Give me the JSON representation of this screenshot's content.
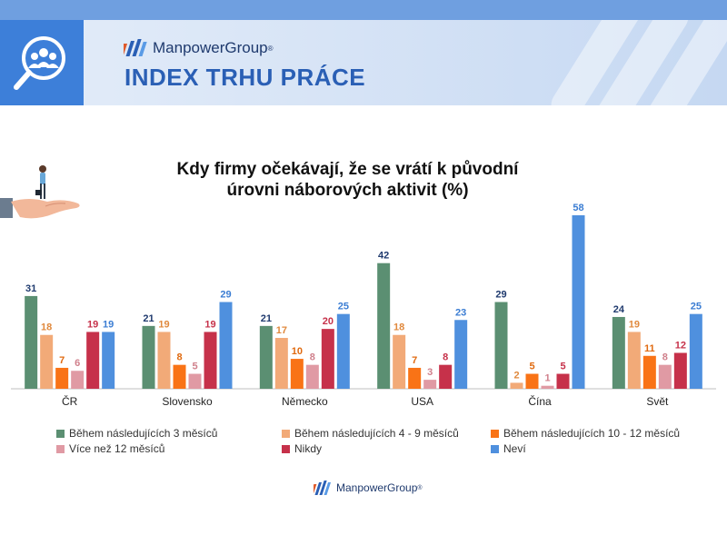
{
  "header": {
    "brand": "ManpowerGroup",
    "brand_mark": "®",
    "title": "INDEX TRHU PRÁCE"
  },
  "footer": {
    "brand": "ManpowerGroup",
    "brand_mark": "®"
  },
  "icons": {
    "header_icon": "people-search-icon",
    "illustration": "hand-holding-businesswoman-icon",
    "logo": "manpower-stripes-logo"
  },
  "colors": {
    "header_icon_bg": "#3d7fd9",
    "banner_top": "#6f9fe0",
    "title_blue": "#2a5fb5",
    "label_default": "#1f3a6e"
  },
  "chart_data": {
    "type": "bar",
    "title": "Kdy firmy očekávají, že se vrátí k původní\núrovni náborových aktivit (%)",
    "xlabel": "",
    "ylabel": "",
    "ylim": [
      0,
      60
    ],
    "grid": false,
    "legend_position": "bottom",
    "categories": [
      "ČR",
      "Slovensko",
      "Německo",
      "USA",
      "Čína",
      "Svět"
    ],
    "series": [
      {
        "name": "Během následujících 3 měsíců",
        "color": "#5b8f72",
        "label_color": "#1f3a6e",
        "values": [
          31,
          21,
          21,
          42,
          29,
          24
        ]
      },
      {
        "name": "Během následujících 4 - 9 měsíců",
        "color": "#f2aa78",
        "label_color": "#e0893d",
        "values": [
          18,
          19,
          17,
          18,
          2,
          19
        ]
      },
      {
        "name": "Během následujících 10 - 12 měsíců",
        "color": "#f97316",
        "label_color": "#e06a10",
        "values": [
          7,
          8,
          10,
          7,
          5,
          11
        ]
      },
      {
        "name": "Více než 12 měsíců",
        "color": "#e09aa4",
        "label_color": "#d0808c",
        "values": [
          6,
          5,
          8,
          3,
          1,
          8
        ]
      },
      {
        "name": "Nikdy",
        "color": "#c6314a",
        "label_color": "#c6314a",
        "values": [
          19,
          19,
          20,
          8,
          5,
          12
        ]
      },
      {
        "name": "Neví",
        "color": "#4f90de",
        "label_color": "#3b7dd3",
        "values": [
          19,
          29,
          25,
          23,
          58,
          25
        ]
      }
    ]
  }
}
